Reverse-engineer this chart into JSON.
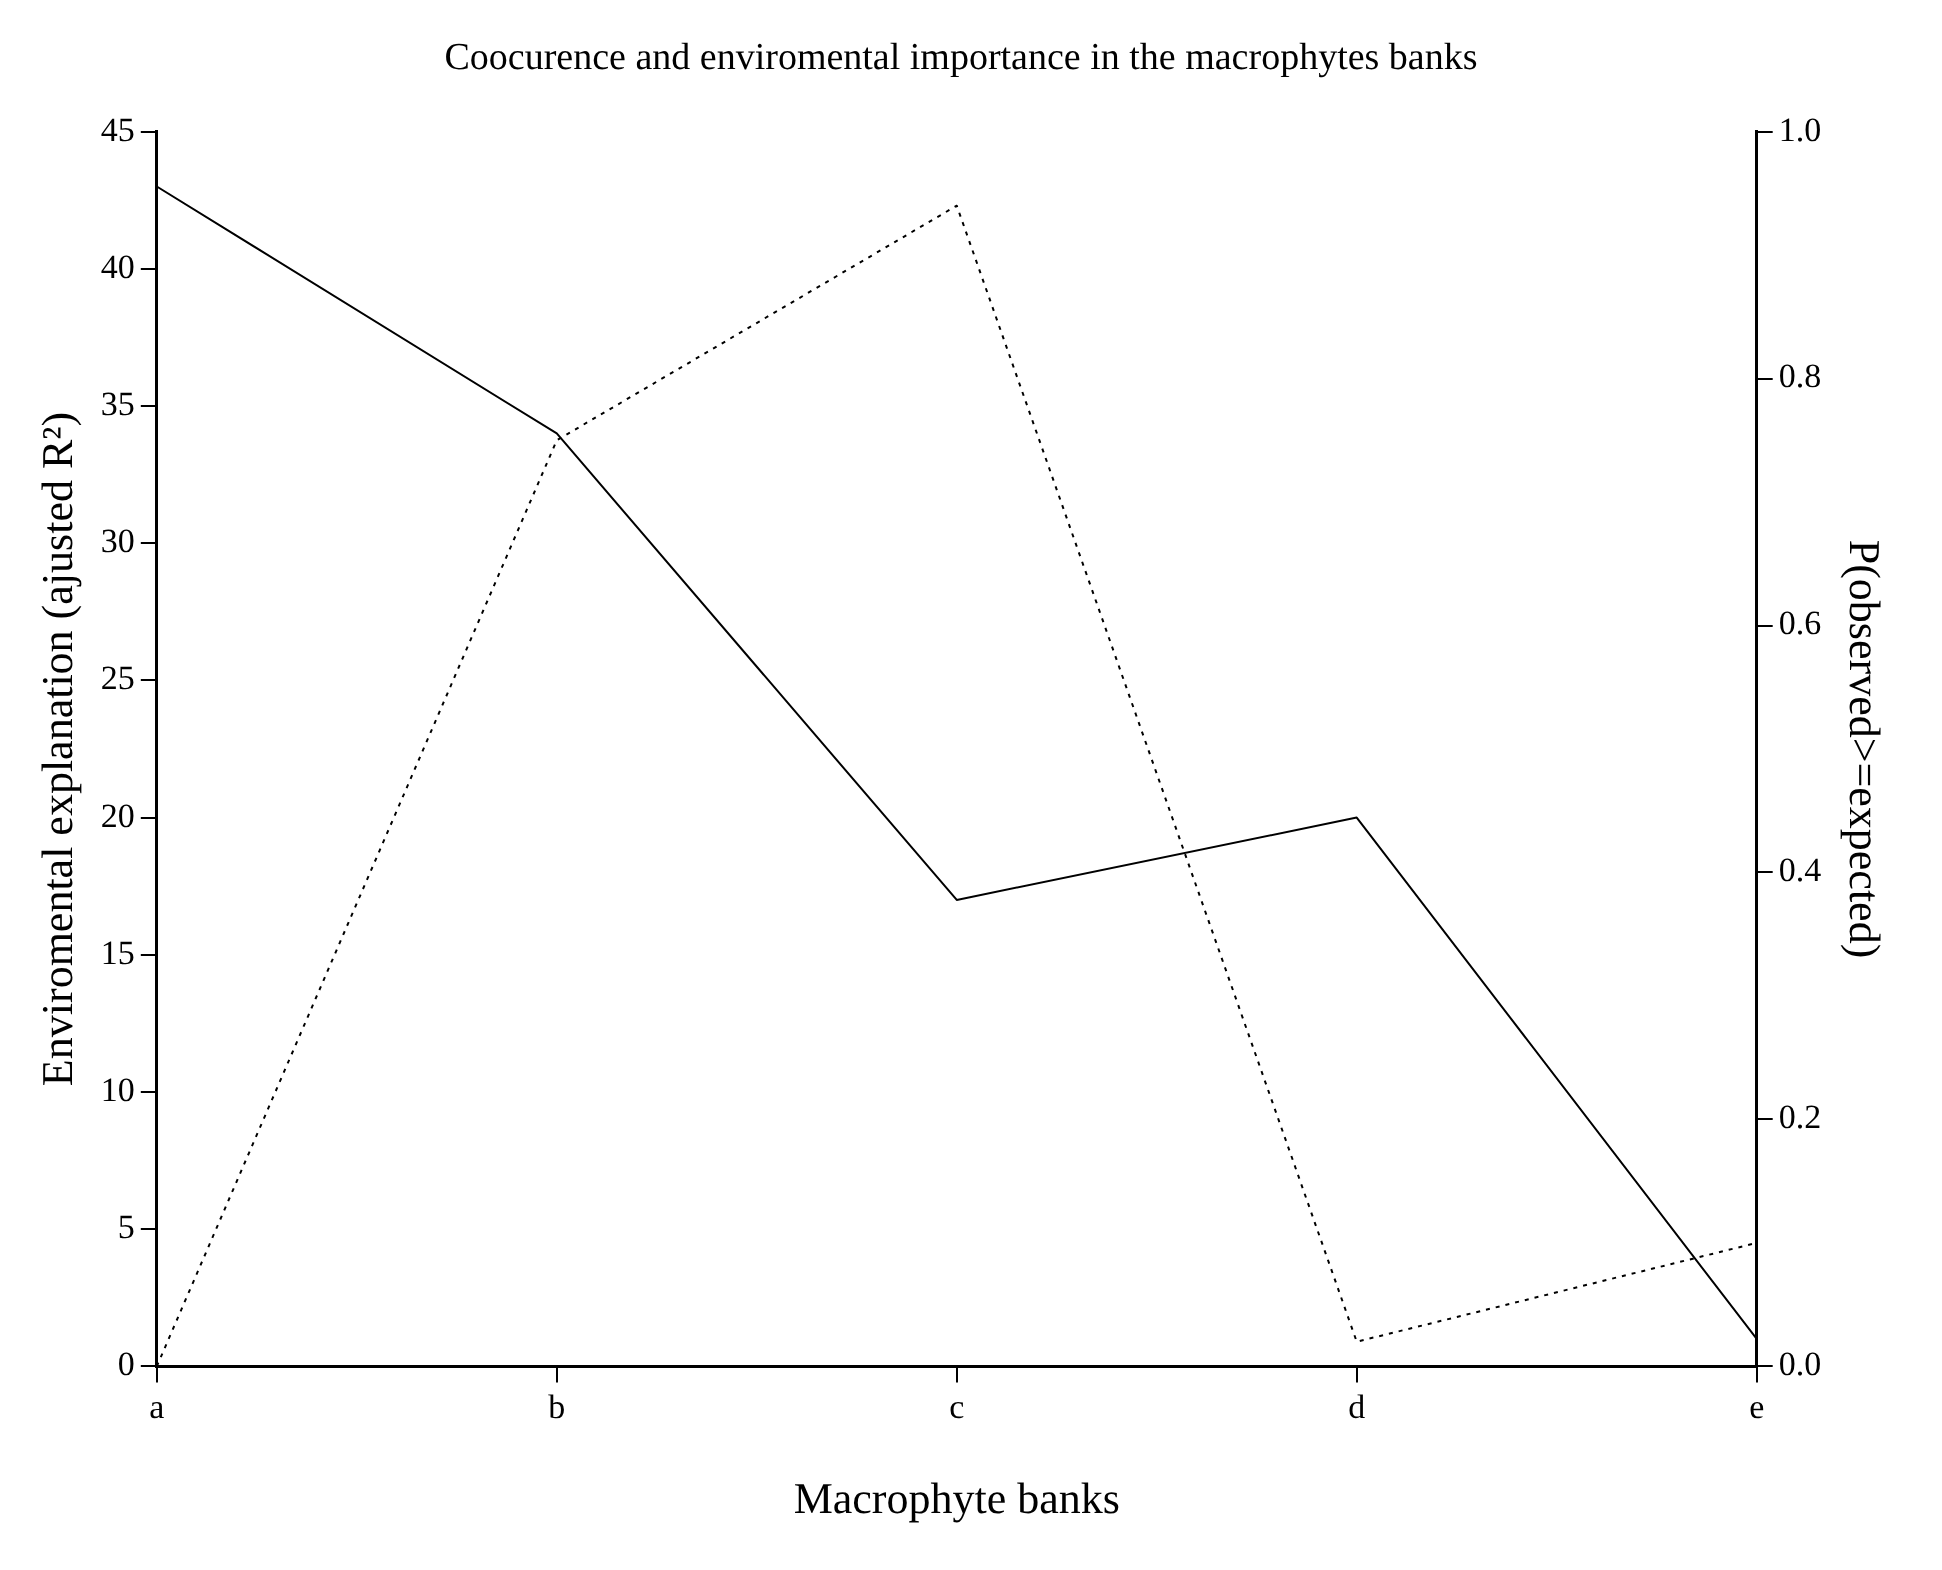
{
  "chart_data": {
    "type": "line",
    "title": "Coocurence and enviromental importance in the macrophytes banks",
    "xlabel": "Macrophyte banks",
    "ylabel": "Enviromental explanation (ajusted R²)",
    "y2label": "P(observed>=expected)",
    "categories": [
      "a",
      "b",
      "c",
      "d",
      "e"
    ],
    "series": [
      {
        "color": "#000000",
        "line_style": "solid",
        "values": [
          43,
          34,
          17,
          20,
          1
        ]
      },
      {
        "color": "#000000",
        "line_style": "dotted",
        "axis": "y2",
        "values": [
          0,
          0.75,
          0.94,
          0.02,
          0.1
        ]
      }
    ],
    "ylim": [
      0,
      45
    ],
    "yticks": [
      0,
      5,
      10,
      15,
      20,
      25,
      30,
      35,
      40,
      45
    ],
    "y2lim": [
      0,
      1
    ],
    "y2ticks": [
      {
        "value": 0,
        "label": "0.0"
      },
      {
        "value": 0.2,
        "label": "0.2"
      },
      {
        "value": 0.4,
        "label": "0.4"
      },
      {
        "value": 0.6,
        "label": "0.6"
      },
      {
        "value": 0.8,
        "label": "0.8"
      },
      {
        "value": 1,
        "label": "1.0"
      }
    ],
    "grid": false,
    "legend": false,
    "marker": "none"
  }
}
